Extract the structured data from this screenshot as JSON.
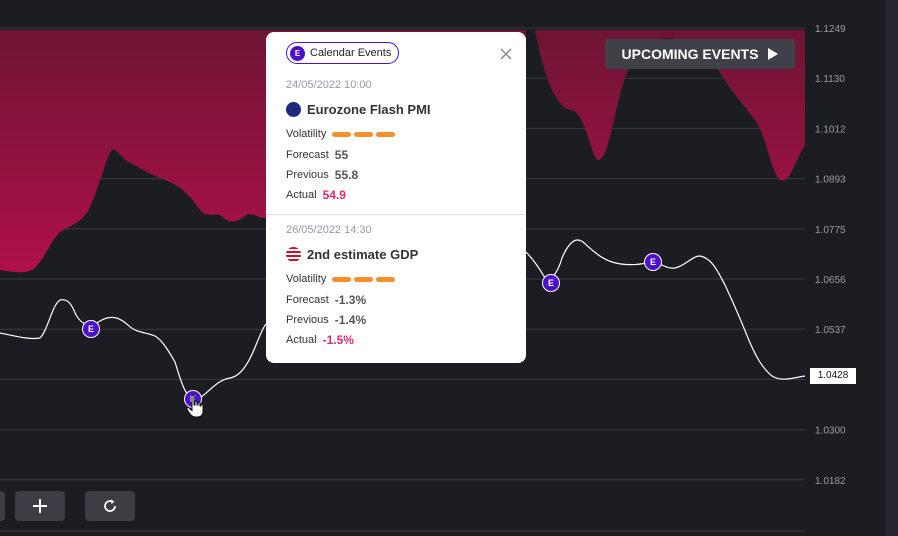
{
  "chart_data": {
    "type": "line",
    "y_ticks": [
      "1.1249",
      "1.1130",
      "1.1012",
      "1.0893",
      "1.0775",
      "1.0656",
      "1.0537",
      "1.0428",
      "1.0300",
      "1.0182"
    ],
    "y_range": [
      1.0182,
      1.1249
    ],
    "current_price": "1.0428",
    "grid": true
  },
  "current_price_label": "1.0428",
  "upcoming": {
    "label": "UPCOMING EVENTS"
  },
  "markers": {
    "label": "E"
  },
  "popup": {
    "chip_label": "Calendar Events",
    "chip_icon": "E",
    "events": [
      {
        "date": "24/05/2022 10:00",
        "title": "Eurozone Flash PMI",
        "flag": "eu-flag",
        "volatility_label": "Volatility",
        "volatility_level": 3,
        "forecast_label": "Forecast",
        "forecast": "55",
        "previous_label": "Previous",
        "previous": "55.8",
        "actual_label": "Actual",
        "actual": "54.9"
      },
      {
        "date": "26/05/2022 14:30",
        "title": "2nd estimate GDP",
        "flag": "us-flag",
        "volatility_label": "Volatility",
        "volatility_level": 3,
        "forecast_label": "Forecast",
        "forecast": "-1.3%",
        "previous_label": "Previous",
        "previous": "-1.4%",
        "actual_label": "Actual",
        "actual": "-1.5%"
      }
    ]
  },
  "colors": {
    "background": "#1c1d23",
    "area": "#9b1545",
    "marker": "#4d10c9",
    "volatility": "#f5902a",
    "actual": "#e0286b"
  }
}
